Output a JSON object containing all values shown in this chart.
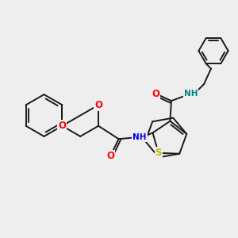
{
  "bg_color": "#eeeeee",
  "bond_color": "#1a1a1a",
  "bond_width": 1.4,
  "atom_colors": {
    "O": "#ff0000",
    "N": "#0000ee",
    "S": "#bbbb00",
    "NH_teal": "#008080",
    "C": "#1a1a1a"
  },
  "font_size": 8.5
}
